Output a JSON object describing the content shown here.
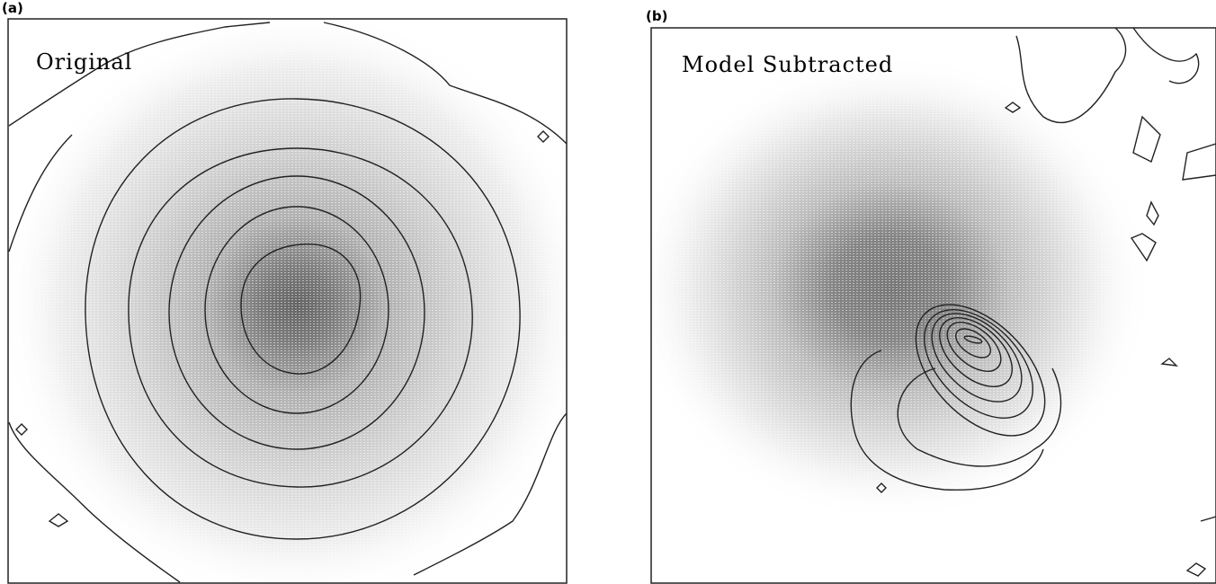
{
  "panels": [
    {
      "label": "(a)",
      "title": "Original"
    },
    {
      "label": "(b)",
      "title": "Model Subtracted"
    }
  ]
}
